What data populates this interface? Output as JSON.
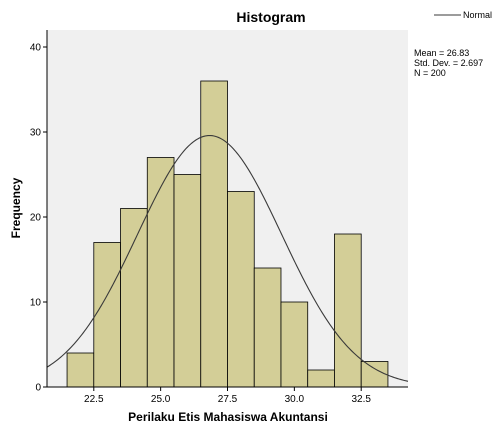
{
  "chart_data": {
    "type": "histogram",
    "title": "Histogram",
    "xlabel": "Perilaku Etis Mahasiswa Akuntansi",
    "ylabel": "Frequency",
    "xlim": [
      20.75,
      34.25
    ],
    "ylim": [
      0,
      42
    ],
    "x_ticks": [
      22.5,
      25.0,
      27.5,
      30.0,
      32.5
    ],
    "x_tick_labels": [
      "22.5",
      "25.0",
      "27.5",
      "30.0",
      "32.5"
    ],
    "y_ticks": [
      0,
      10,
      20,
      30,
      40
    ],
    "y_tick_labels": [
      "0",
      "10",
      "20",
      "30",
      "40"
    ],
    "bin_width": 1,
    "bins": [
      {
        "start": 21.5,
        "end": 22.5,
        "count": 4
      },
      {
        "start": 22.5,
        "end": 23.5,
        "count": 17
      },
      {
        "start": 23.5,
        "end": 24.5,
        "count": 21
      },
      {
        "start": 24.5,
        "end": 25.5,
        "count": 27
      },
      {
        "start": 25.5,
        "end": 26.5,
        "count": 25
      },
      {
        "start": 26.5,
        "end": 27.5,
        "count": 36
      },
      {
        "start": 27.5,
        "end": 28.5,
        "count": 23
      },
      {
        "start": 28.5,
        "end": 29.5,
        "count": 14
      },
      {
        "start": 29.5,
        "end": 30.5,
        "count": 10
      },
      {
        "start": 30.5,
        "end": 31.5,
        "count": 2
      },
      {
        "start": 31.5,
        "end": 32.5,
        "count": 18
      },
      {
        "start": 32.5,
        "end": 33.5,
        "count": 3
      }
    ],
    "normal_curve": {
      "mean": 26.83,
      "std": 2.697,
      "n": 200
    },
    "stats_lines": [
      "Mean = 26.83",
      "Std. Dev. = 2.697",
      "N = 200"
    ],
    "legend": [
      {
        "name": "Normal"
      }
    ],
    "legend_position": "top-right",
    "grid": false,
    "colors": {
      "bar_fill": "#d3ce97",
      "bar_stroke": "#000000",
      "plot_bg": "#f0f0f0",
      "curve": "#3a3a3a",
      "axis": "#000000"
    }
  }
}
